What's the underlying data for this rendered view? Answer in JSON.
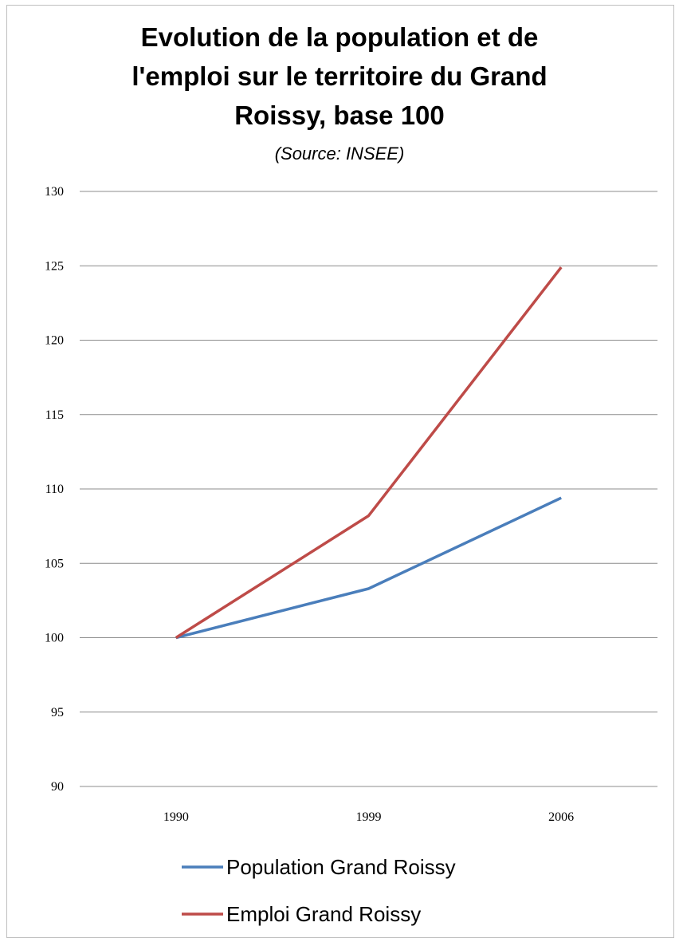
{
  "chart_data": {
    "type": "line",
    "title_lines": [
      "Evolution de la population et de",
      "l'emploi sur le territoire du Grand",
      "Roissy, base 100"
    ],
    "subtitle": "(Source: INSEE)",
    "categories": [
      "1990",
      "1999",
      "2006"
    ],
    "series": [
      {
        "name": "Population Grand Roissy",
        "color": "#4a7ebb",
        "values": [
          100,
          103.3,
          109.4
        ]
      },
      {
        "name": "Emploi Grand Roissy",
        "color": "#be4b48",
        "values": [
          100,
          108.2,
          124.9
        ]
      }
    ],
    "yticks": [
      "90",
      "95",
      "100",
      "105",
      "110",
      "115",
      "120",
      "125",
      "130"
    ],
    "ylim": [
      90,
      130
    ],
    "grid": true,
    "legend_position": "bottom",
    "xlabel": "",
    "ylabel": ""
  }
}
